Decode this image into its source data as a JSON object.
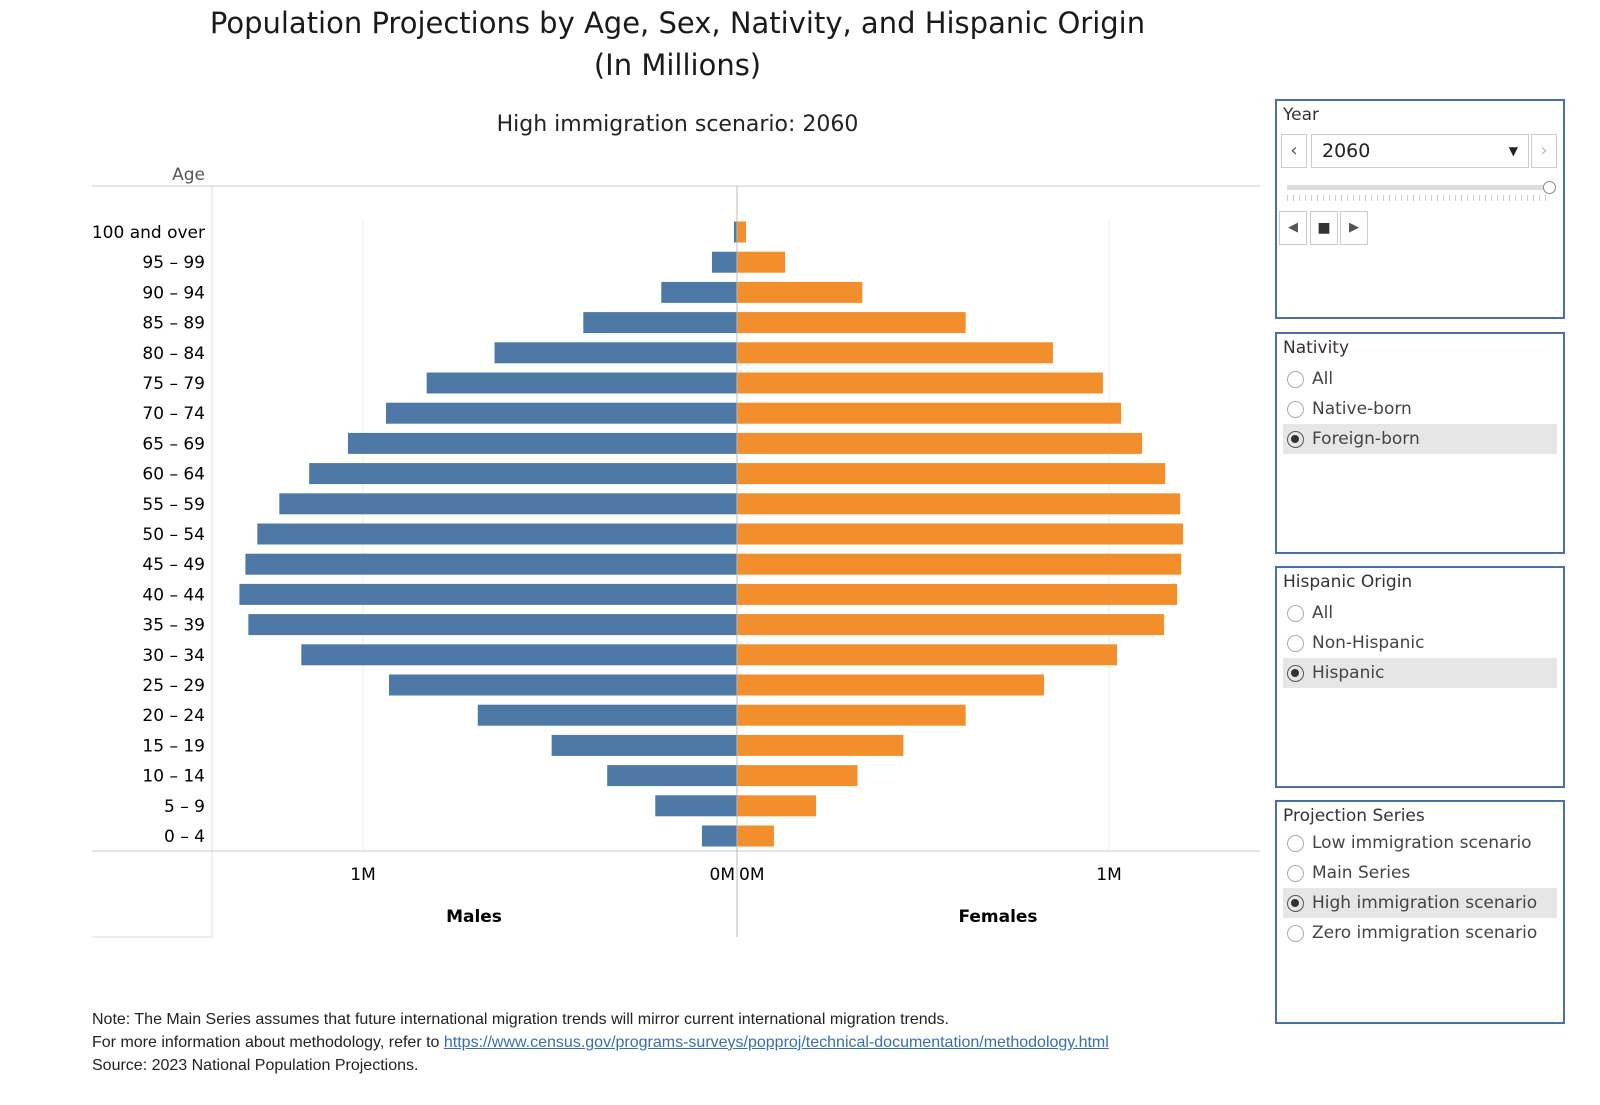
{
  "title_line1": "Population Projections by Age, Sex, Nativity, and Hispanic Origin",
  "title_line2": "(In Millions)",
  "chart_data": {
    "type": "bar",
    "subtitle": "High immigration scenario: 2060",
    "ylabel": "Age",
    "categories": [
      "100 and over",
      "95 – 99",
      "90 – 94",
      "85 – 89",
      "80 – 84",
      "75 – 79",
      "70 – 74",
      "65 – 69",
      "60 – 64",
      "55 – 59",
      "50 – 54",
      "45 – 49",
      "40 – 44",
      "35 – 39",
      "30 – 34",
      "25 – 29",
      "20 – 24",
      "15 – 19",
      "10 – 14",
      "5 – 9",
      "0 – 4"
    ],
    "series": [
      {
        "name": "Males",
        "color": "#4e79a7",
        "values": [
          0.008,
          0.067,
          0.203,
          0.412,
          0.65,
          0.832,
          0.941,
          1.043,
          1.147,
          1.227,
          1.286,
          1.318,
          1.334,
          1.31,
          1.168,
          0.933,
          0.695,
          0.497,
          0.348,
          0.219,
          0.094
        ]
      },
      {
        "name": "Females",
        "color": "#f28e2b",
        "values": [
          0.024,
          0.129,
          0.336,
          0.613,
          0.847,
          0.981,
          1.03,
          1.086,
          1.148,
          1.188,
          1.196,
          1.191,
          1.18,
          1.145,
          1.019,
          0.823,
          0.613,
          0.446,
          0.323,
          0.212,
          0.099
        ]
      }
    ],
    "x_ticks_males": [
      "1M",
      "0M"
    ],
    "x_ticks_females": [
      "0M",
      "1M"
    ],
    "xlim_millions": [
      0,
      1.67
    ],
    "grid": true,
    "unit": "millions"
  },
  "filters": {
    "year": {
      "label": "Year",
      "value": "2060"
    },
    "nativity": {
      "label": "Nativity",
      "options": [
        "All",
        "Native-born",
        "Foreign-born"
      ],
      "selected": "Foreign-born"
    },
    "hispanic": {
      "label": "Hispanic Origin",
      "options": [
        "All",
        "Non-Hispanic",
        "Hispanic"
      ],
      "selected": "Hispanic"
    },
    "series": {
      "label": "Projection Series",
      "options": [
        "Low immigration scenario",
        "Main Series",
        "High immigration scenario",
        "Zero immigration scenario"
      ],
      "selected": "High immigration scenario"
    }
  },
  "notes": {
    "line1": "Note: The Main Series assumes that future international migration trends will mirror current international migration trends.",
    "line2_prefix": "For more information about methodology, refer to ",
    "link": "https://www.census.gov/programs-surveys/popproj/technical-documentation/methodology.html",
    "source": "Source: 2023 National Population Projections."
  }
}
